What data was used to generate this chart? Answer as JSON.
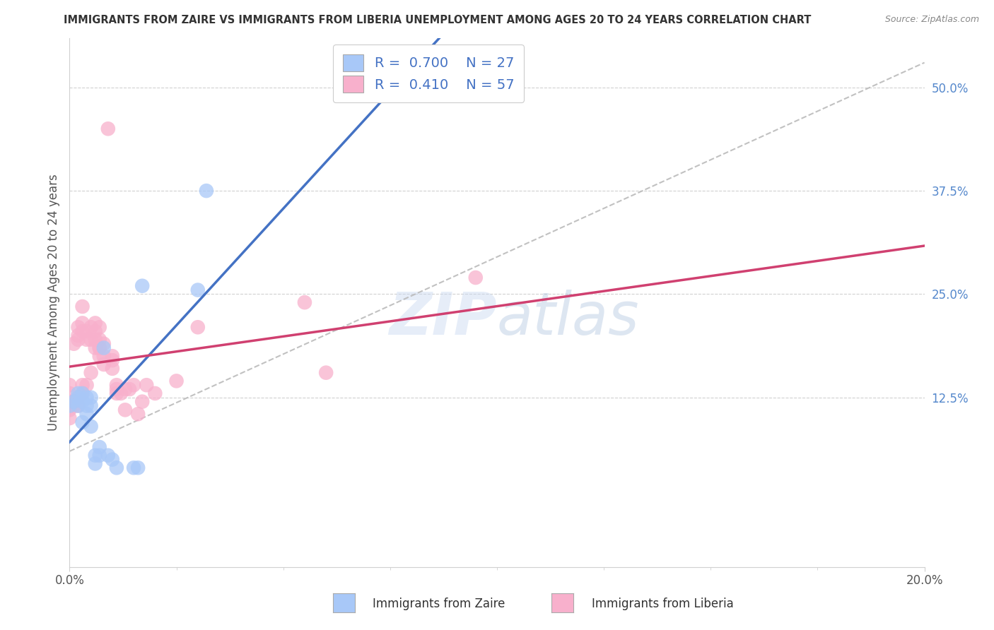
{
  "title": "IMMIGRANTS FROM ZAIRE VS IMMIGRANTS FROM LIBERIA UNEMPLOYMENT AMONG AGES 20 TO 24 YEARS CORRELATION CHART",
  "source": "Source: ZipAtlas.com",
  "ylabel": "Unemployment Among Ages 20 to 24 years",
  "legend_label_zaire": "Immigrants from Zaire",
  "legend_label_liberia": "Immigrants from Liberia",
  "xlim": [
    0.0,
    0.2
  ],
  "ylim": [
    -0.08,
    0.56
  ],
  "right_ytick_labels": [
    "50.0%",
    "37.5%",
    "25.0%",
    "12.5%"
  ],
  "right_ytick_vals": [
    0.5,
    0.375,
    0.25,
    0.125
  ],
  "xtick_vals": [
    0.0,
    0.2
  ],
  "xtick_labels": [
    "0.0%",
    "20.0%"
  ],
  "legend_r_zaire": "0.700",
  "legend_n_zaire": "27",
  "legend_r_liberia": "0.410",
  "legend_n_liberia": "57",
  "zaire_color": "#a8c8f8",
  "liberia_color": "#f8b0cc",
  "zaire_line_color": "#4472c4",
  "liberia_line_color": "#d04070",
  "ref_line_color": "#bbbbbb",
  "watermark_zip": "ZIP",
  "watermark_atlas": "atlas",
  "bg_color": "#ffffff",
  "grid_color": "#d0d0d0",
  "axis_label_color": "#555555",
  "right_tick_color": "#5588cc",
  "title_color": "#333333",
  "zaire_x": [
    0.0,
    0.001,
    0.002,
    0.002,
    0.002,
    0.003,
    0.003,
    0.003,
    0.004,
    0.004,
    0.004,
    0.005,
    0.005,
    0.005,
    0.006,
    0.006,
    0.007,
    0.007,
    0.008,
    0.009,
    0.01,
    0.011,
    0.015,
    0.016,
    0.017,
    0.03,
    0.032
  ],
  "zaire_y": [
    0.115,
    0.12,
    0.115,
    0.125,
    0.13,
    0.12,
    0.13,
    0.095,
    0.125,
    0.115,
    0.105,
    0.125,
    0.115,
    0.09,
    0.055,
    0.045,
    0.065,
    0.055,
    0.185,
    0.055,
    0.05,
    0.04,
    0.04,
    0.04,
    0.26,
    0.255,
    0.375
  ],
  "liberia_x": [
    0.0,
    0.0,
    0.0,
    0.0,
    0.0,
    0.001,
    0.001,
    0.001,
    0.002,
    0.002,
    0.002,
    0.002,
    0.002,
    0.003,
    0.003,
    0.003,
    0.003,
    0.003,
    0.004,
    0.004,
    0.004,
    0.005,
    0.005,
    0.005,
    0.006,
    0.006,
    0.006,
    0.006,
    0.007,
    0.007,
    0.007,
    0.007,
    0.007,
    0.008,
    0.008,
    0.008,
    0.009,
    0.01,
    0.01,
    0.01,
    0.011,
    0.011,
    0.011,
    0.012,
    0.013,
    0.013,
    0.014,
    0.015,
    0.016,
    0.017,
    0.018,
    0.02,
    0.025,
    0.03,
    0.055,
    0.06,
    0.095
  ],
  "liberia_y": [
    0.1,
    0.11,
    0.12,
    0.13,
    0.14,
    0.115,
    0.12,
    0.19,
    0.115,
    0.125,
    0.195,
    0.2,
    0.21,
    0.13,
    0.14,
    0.205,
    0.215,
    0.235,
    0.14,
    0.195,
    0.205,
    0.155,
    0.195,
    0.21,
    0.185,
    0.195,
    0.205,
    0.215,
    0.175,
    0.185,
    0.185,
    0.195,
    0.21,
    0.165,
    0.175,
    0.19,
    0.45,
    0.16,
    0.17,
    0.175,
    0.13,
    0.135,
    0.14,
    0.13,
    0.11,
    0.135,
    0.135,
    0.14,
    0.105,
    0.12,
    0.14,
    0.13,
    0.145,
    0.21,
    0.24,
    0.155,
    0.27
  ]
}
